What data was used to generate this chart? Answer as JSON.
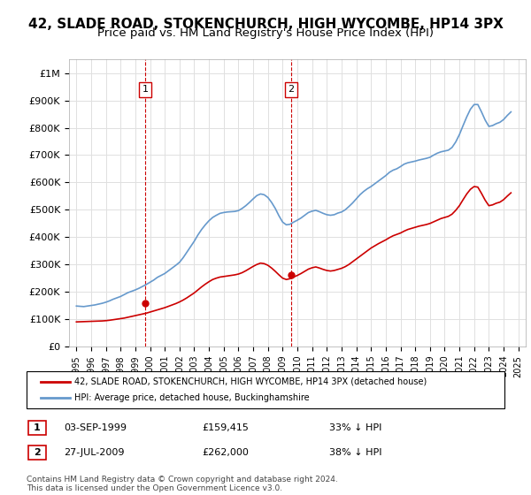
{
  "title": "42, SLADE ROAD, STOKENCHURCH, HIGH WYCOMBE, HP14 3PX",
  "subtitle": "Price paid vs. HM Land Registry's House Price Index (HPI)",
  "title_fontsize": 11,
  "subtitle_fontsize": 9.5,
  "ylabel_ticks": [
    "£0",
    "£100K",
    "£200K",
    "£300K",
    "£400K",
    "£500K",
    "£600K",
    "£700K",
    "£800K",
    "£900K",
    "£1M"
  ],
  "ylim": [
    0,
    1050000
  ],
  "xlim": [
    1994.5,
    2025.5
  ],
  "background_color": "#ffffff",
  "grid_color": "#e0e0e0",
  "red_line_color": "#cc0000",
  "blue_line_color": "#6699cc",
  "marker_color": "#cc0000",
  "dashed_line_color": "#cc0000",
  "point1_x": 1999.67,
  "point1_y": 159415,
  "point2_x": 2009.58,
  "point2_y": 262000,
  "legend_label_red": "42, SLADE ROAD, STOKENCHURCH, HIGH WYCOMBE, HP14 3PX (detached house)",
  "legend_label_blue": "HPI: Average price, detached house, Buckinghamshire",
  "table_row1": [
    "1",
    "03-SEP-1999",
    "£159,415",
    "33% ↓ HPI"
  ],
  "table_row2": [
    "2",
    "27-JUL-2009",
    "£262,000",
    "38% ↓ HPI"
  ],
  "footnote": "Contains HM Land Registry data © Crown copyright and database right 2024.\nThis data is licensed under the Open Government Licence v3.0.",
  "hpi_x": [
    1995.0,
    1995.25,
    1995.5,
    1995.75,
    1996.0,
    1996.25,
    1996.5,
    1996.75,
    1997.0,
    1997.25,
    1997.5,
    1997.75,
    1998.0,
    1998.25,
    1998.5,
    1998.75,
    1999.0,
    1999.25,
    1999.5,
    1999.75,
    2000.0,
    2000.25,
    2000.5,
    2000.75,
    2001.0,
    2001.25,
    2001.5,
    2001.75,
    2002.0,
    2002.25,
    2002.5,
    2002.75,
    2003.0,
    2003.25,
    2003.5,
    2003.75,
    2004.0,
    2004.25,
    2004.5,
    2004.75,
    2005.0,
    2005.25,
    2005.5,
    2005.75,
    2006.0,
    2006.25,
    2006.5,
    2006.75,
    2007.0,
    2007.25,
    2007.5,
    2007.75,
    2008.0,
    2008.25,
    2008.5,
    2008.75,
    2009.0,
    2009.25,
    2009.5,
    2009.75,
    2010.0,
    2010.25,
    2010.5,
    2010.75,
    2011.0,
    2011.25,
    2011.5,
    2011.75,
    2012.0,
    2012.25,
    2012.5,
    2012.75,
    2013.0,
    2013.25,
    2013.5,
    2013.75,
    2014.0,
    2014.25,
    2014.5,
    2014.75,
    2015.0,
    2015.25,
    2015.5,
    2015.75,
    2016.0,
    2016.25,
    2016.5,
    2016.75,
    2017.0,
    2017.25,
    2017.5,
    2017.75,
    2018.0,
    2018.25,
    2018.5,
    2018.75,
    2019.0,
    2019.25,
    2019.5,
    2019.75,
    2020.0,
    2020.25,
    2020.5,
    2020.75,
    2021.0,
    2021.25,
    2021.5,
    2021.75,
    2022.0,
    2022.25,
    2022.5,
    2022.75,
    2023.0,
    2023.25,
    2023.5,
    2023.75,
    2024.0,
    2024.25,
    2024.5
  ],
  "hpi_y": [
    148000,
    147000,
    146000,
    148000,
    150000,
    152000,
    155000,
    158000,
    162000,
    167000,
    173000,
    178000,
    183000,
    190000,
    197000,
    202000,
    207000,
    213000,
    220000,
    227000,
    235000,
    243000,
    253000,
    260000,
    267000,
    277000,
    287000,
    297000,
    308000,
    325000,
    345000,
    365000,
    385000,
    408000,
    428000,
    445000,
    460000,
    472000,
    480000,
    487000,
    490000,
    492000,
    493000,
    494000,
    497000,
    505000,
    515000,
    527000,
    540000,
    552000,
    558000,
    555000,
    545000,
    527000,
    505000,
    478000,
    455000,
    445000,
    447000,
    455000,
    462000,
    470000,
    480000,
    490000,
    495000,
    498000,
    493000,
    487000,
    482000,
    480000,
    482000,
    488000,
    492000,
    500000,
    512000,
    525000,
    540000,
    555000,
    567000,
    577000,
    585000,
    595000,
    605000,
    615000,
    625000,
    637000,
    645000,
    650000,
    658000,
    667000,
    672000,
    675000,
    678000,
    682000,
    685000,
    688000,
    692000,
    700000,
    707000,
    712000,
    715000,
    718000,
    728000,
    748000,
    775000,
    808000,
    840000,
    868000,
    885000,
    885000,
    858000,
    828000,
    805000,
    808000,
    815000,
    820000,
    830000,
    845000,
    858000
  ],
  "red_x": [
    1995.0,
    1995.25,
    1995.5,
    1995.75,
    1996.0,
    1996.25,
    1996.5,
    1996.75,
    1997.0,
    1997.25,
    1997.5,
    1997.75,
    1998.0,
    1998.25,
    1998.5,
    1998.75,
    1999.0,
    1999.25,
    1999.5,
    1999.75,
    2000.0,
    2000.25,
    2000.5,
    2000.75,
    2001.0,
    2001.25,
    2001.5,
    2001.75,
    2002.0,
    2002.25,
    2002.5,
    2002.75,
    2003.0,
    2003.25,
    2003.5,
    2003.75,
    2004.0,
    2004.25,
    2004.5,
    2004.75,
    2005.0,
    2005.25,
    2005.5,
    2005.75,
    2006.0,
    2006.25,
    2006.5,
    2006.75,
    2007.0,
    2007.25,
    2007.5,
    2007.75,
    2008.0,
    2008.25,
    2008.5,
    2008.75,
    2009.0,
    2009.25,
    2009.5,
    2009.75,
    2010.0,
    2010.25,
    2010.5,
    2010.75,
    2011.0,
    2011.25,
    2011.5,
    2011.75,
    2012.0,
    2012.25,
    2012.5,
    2012.75,
    2013.0,
    2013.25,
    2013.5,
    2013.75,
    2014.0,
    2014.25,
    2014.5,
    2014.75,
    2015.0,
    2015.25,
    2015.5,
    2015.75,
    2016.0,
    2016.25,
    2016.5,
    2016.75,
    2017.0,
    2017.25,
    2017.5,
    2017.75,
    2018.0,
    2018.25,
    2018.5,
    2018.75,
    2019.0,
    2019.25,
    2019.5,
    2019.75,
    2020.0,
    2020.25,
    2020.5,
    2020.75,
    2021.0,
    2021.25,
    2021.5,
    2021.75,
    2022.0,
    2022.25,
    2022.5,
    2022.75,
    2023.0,
    2023.25,
    2023.5,
    2023.75,
    2024.0,
    2024.25,
    2024.5
  ],
  "red_y": [
    90000,
    90500,
    91000,
    91500,
    92000,
    92500,
    93000,
    93500,
    94500,
    96000,
    98000,
    100000,
    102000,
    104000,
    107000,
    110000,
    113000,
    116000,
    119000,
    122000,
    126000,
    130000,
    134000,
    138000,
    142000,
    147000,
    152000,
    157000,
    163000,
    170000,
    178000,
    187000,
    196000,
    207000,
    218000,
    228000,
    237000,
    245000,
    250000,
    254000,
    256000,
    258000,
    260000,
    262000,
    265000,
    270000,
    277000,
    285000,
    293000,
    300000,
    305000,
    303000,
    297000,
    287000,
    275000,
    262000,
    250000,
    245000,
    248000,
    254000,
    260000,
    267000,
    275000,
    283000,
    288000,
    291000,
    287000,
    282000,
    278000,
    276000,
    278000,
    282000,
    286000,
    292000,
    300000,
    310000,
    320000,
    330000,
    340000,
    350000,
    360000,
    368000,
    376000,
    383000,
    390000,
    398000,
    405000,
    410000,
    415000,
    422000,
    428000,
    432000,
    436000,
    440000,
    443000,
    446000,
    450000,
    456000,
    462000,
    468000,
    472000,
    476000,
    484000,
    498000,
    515000,
    537000,
    558000,
    575000,
    585000,
    583000,
    560000,
    535000,
    515000,
    518000,
    524000,
    528000,
    537000,
    550000,
    562000
  ]
}
